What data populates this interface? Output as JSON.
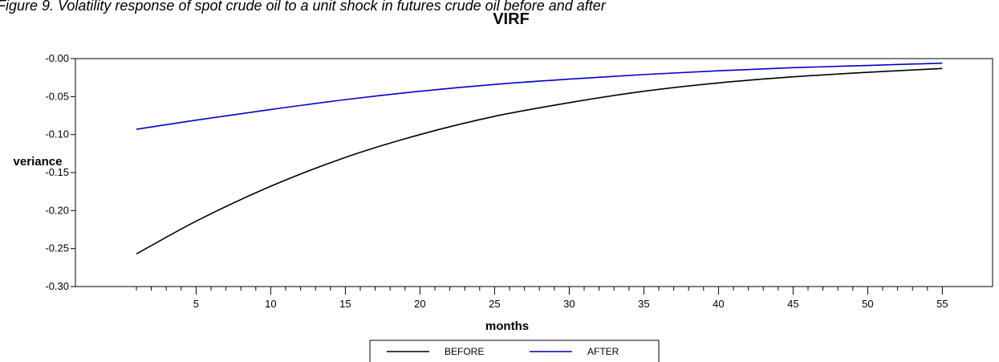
{
  "caption": "Figure 9. Volatility response of spot crude oil to a unit shock in futures crude oil before and after",
  "chart_data": {
    "type": "line",
    "title": "VIRF",
    "xlabel": "months",
    "ylabel": "veriance",
    "xlim": [
      1,
      55
    ],
    "ylim": [
      -0.3,
      0.0
    ],
    "x_ticks": [
      5,
      10,
      15,
      20,
      25,
      30,
      35,
      40,
      45,
      50,
      55
    ],
    "y_ticks": [
      "-0.00",
      "-0.05",
      "-0.10",
      "-0.15",
      "-0.20",
      "-0.25",
      "-0.30"
    ],
    "grid": false,
    "legend_position": "bottom",
    "series": [
      {
        "name": "BEFORE",
        "color": "#000000",
        "x": [
          1,
          5,
          10,
          15,
          20,
          25,
          30,
          35,
          40,
          45,
          50,
          55
        ],
        "y": [
          -0.257,
          -0.214,
          -0.168,
          -0.13,
          -0.1,
          -0.076,
          -0.058,
          -0.043,
          -0.032,
          -0.024,
          -0.018,
          -0.013
        ]
      },
      {
        "name": "AFTER",
        "color": "#0000cc",
        "x": [
          1,
          5,
          10,
          15,
          20,
          25,
          30,
          35,
          40,
          45,
          50,
          55
        ],
        "y": [
          -0.093,
          -0.081,
          -0.067,
          -0.054,
          -0.043,
          -0.034,
          -0.027,
          -0.021,
          -0.016,
          -0.012,
          -0.009,
          -0.006
        ]
      }
    ]
  }
}
